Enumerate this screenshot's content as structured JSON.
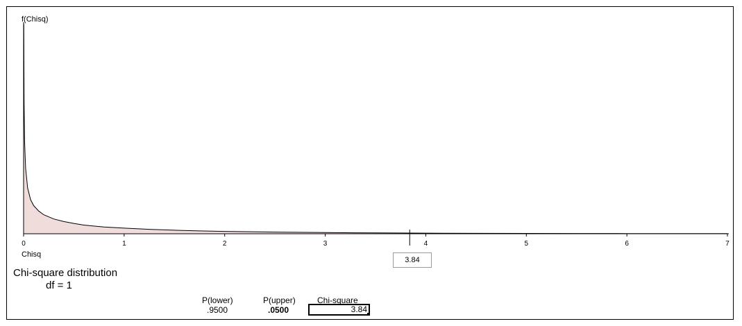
{
  "chart_data": {
    "type": "area",
    "title": "Chi-square distribution",
    "df_label": "df =  1",
    "df": 1,
    "xlabel": "Chisq",
    "ylabel": "f(Chisq)",
    "xlim": [
      0,
      7
    ],
    "x_ticks": [
      "0",
      "1",
      "2",
      "3",
      "4",
      "5",
      "6",
      "7"
    ],
    "curve": {
      "x": [
        0.002,
        0.005,
        0.01,
        0.02,
        0.04,
        0.07,
        0.1,
        0.15,
        0.2,
        0.3,
        0.4,
        0.5,
        0.6,
        0.8,
        1.0,
        1.25,
        1.5,
        1.75,
        2.0,
        2.5,
        3.0,
        3.5,
        3.84,
        4.0,
        4.5,
        5.0,
        5.5,
        6.0,
        6.5,
        7.0
      ],
      "y": [
        8.92,
        5.63,
        3.97,
        2.79,
        1.95,
        1.45,
        1.2,
        0.97,
        0.81,
        0.63,
        0.52,
        0.44,
        0.37,
        0.29,
        0.24,
        0.19,
        0.15,
        0.12,
        0.1,
        0.07,
        0.05,
        0.035,
        0.03,
        0.027,
        0.019,
        0.015,
        0.011,
        0.008,
        0.006,
        0.005
      ]
    },
    "shaded_region": [
      0,
      3.84
    ],
    "fill_color": "#f1dcdc",
    "line_color": "#000000",
    "critical_value": 3.84,
    "critical_label": "3.84"
  },
  "results": {
    "p_lower_label": "P(lower)",
    "p_upper_label": "P(upper)",
    "chisq_label": "Chi-square",
    "p_lower": ".9500",
    "p_upper": ".0500",
    "chisq_value": "3.84"
  }
}
